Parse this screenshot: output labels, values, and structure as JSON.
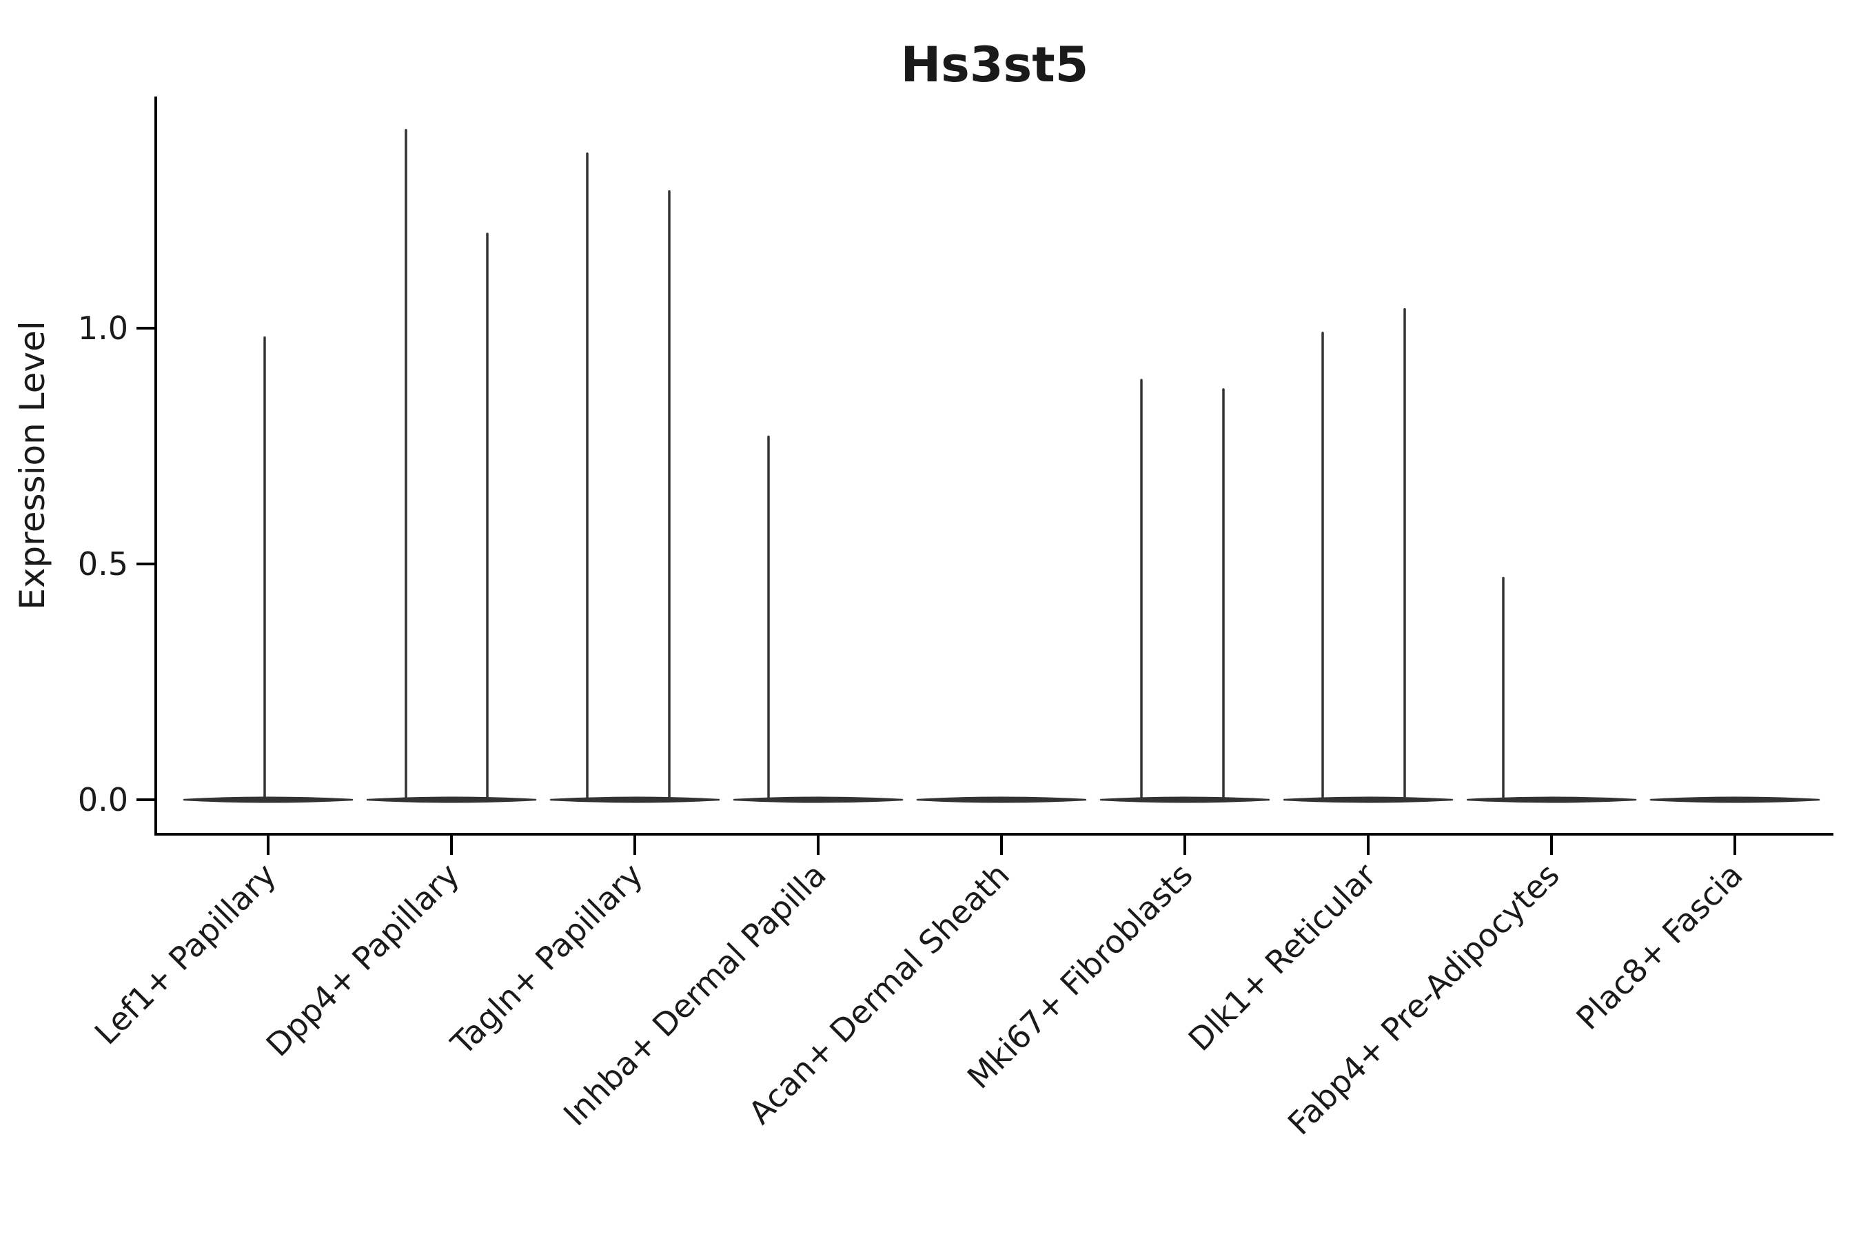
{
  "chart_data": {
    "type": "violin",
    "title": "Hs3st5",
    "xlabel": "",
    "ylabel": "Expression Level",
    "ytick_labels": [
      "0.0",
      "0.5",
      "1.0"
    ],
    "ytick_values": [
      0.0,
      0.5,
      1.0
    ],
    "ylim": [
      -0.07,
      1.49
    ],
    "grid": false,
    "legend": "none",
    "categories": [
      "Lef1+ Papillary",
      "Dpp4+ Papillary",
      "Tagln+ Papillary",
      "Inhba+ Dermal Papilla",
      "Acan+ Dermal Sheath",
      "Mki67+ Fibroblasts",
      "Dlk1+ Reticular",
      "Fabp4+ Pre-Adipocytes",
      "Plac8+ Fascia"
    ],
    "violins": [
      {
        "category": "Lef1+ Papillary",
        "baseline_value": 0.0,
        "spikes": [
          {
            "dx": -5,
            "value": 0.98
          }
        ]
      },
      {
        "category": "Dpp4+ Papillary",
        "baseline_value": 0.0,
        "spikes": [
          {
            "dx": -66,
            "value": 1.42
          },
          {
            "dx": 52,
            "value": 1.2
          }
        ]
      },
      {
        "category": "Tagln+ Papillary",
        "baseline_value": 0.0,
        "spikes": [
          {
            "dx": -69,
            "value": 1.37
          },
          {
            "dx": 50,
            "value": 1.29
          }
        ]
      },
      {
        "category": "Inhba+ Dermal Papilla",
        "baseline_value": 0.0,
        "spikes": [
          {
            "dx": -72,
            "value": 0.77
          }
        ]
      },
      {
        "category": "Acan+ Dermal Sheath",
        "baseline_value": 0.0,
        "spikes": []
      },
      {
        "category": "Mki67+ Fibroblasts",
        "baseline_value": 0.0,
        "spikes": [
          {
            "dx": -63,
            "value": 0.89
          },
          {
            "dx": 56,
            "value": 0.87
          }
        ]
      },
      {
        "category": "Dlk1+ Reticular",
        "baseline_value": 0.0,
        "spikes": [
          {
            "dx": -66,
            "value": 0.99
          },
          {
            "dx": 53,
            "value": 1.04
          }
        ]
      },
      {
        "category": "Fabp4+ Pre-Adipocytes",
        "baseline_value": 0.0,
        "spikes": [
          {
            "dx": -70,
            "value": 0.47
          }
        ]
      },
      {
        "category": "Plac8+ Fascia",
        "baseline_value": 0.0,
        "spikes": []
      }
    ],
    "colors": {
      "violin_line": "#333333",
      "axis": "#000000",
      "text": "#1a1a1a",
      "background": "#ffffff"
    }
  }
}
